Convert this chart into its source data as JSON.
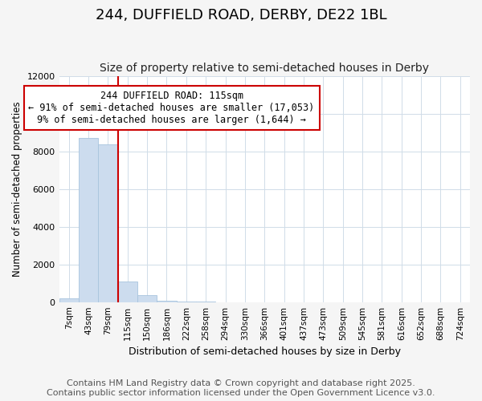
{
  "title": "244, DUFFIELD ROAD, DERBY, DE22 1BL",
  "subtitle": "Size of property relative to semi-detached houses in Derby",
  "xlabel": "Distribution of semi-detached houses by size in Derby",
  "ylabel": "Number of semi-detached properties",
  "bar_labels": [
    "7sqm",
    "43sqm",
    "79sqm",
    "115sqm",
    "150sqm",
    "186sqm",
    "222sqm",
    "258sqm",
    "294sqm",
    "330sqm",
    "366sqm",
    "401sqm",
    "437sqm",
    "473sqm",
    "509sqm",
    "545sqm",
    "581sqm",
    "616sqm",
    "652sqm",
    "688sqm",
    "724sqm"
  ],
  "bar_values": [
    190,
    8700,
    8380,
    1100,
    350,
    90,
    20,
    8,
    3,
    2,
    1,
    1,
    0,
    0,
    0,
    0,
    0,
    0,
    0,
    0,
    0
  ],
  "bar_color": "#ccdcee",
  "bar_edge_color": "#a8c4dd",
  "property_index": 3,
  "property_label": "244 DUFFIELD ROAD: 115sqm",
  "annotation_line1": "← 91% of semi-detached houses are smaller (17,053)",
  "annotation_line2": "9% of semi-detached houses are larger (1,644) →",
  "vline_color": "#cc0000",
  "ylim": [
    0,
    12000
  ],
  "yticks": [
    0,
    2000,
    4000,
    6000,
    8000,
    10000,
    12000
  ],
  "annotation_box_color": "#cc0000",
  "footer_line1": "Contains HM Land Registry data © Crown copyright and database right 2025.",
  "footer_line2": "Contains public sector information licensed under the Open Government Licence v3.0.",
  "background_color": "#f5f5f5",
  "plot_background": "#ffffff",
  "grid_color": "#d0dce8",
  "title_fontsize": 13,
  "subtitle_fontsize": 10,
  "footer_fontsize": 8,
  "annot_fontsize": 8.5
}
